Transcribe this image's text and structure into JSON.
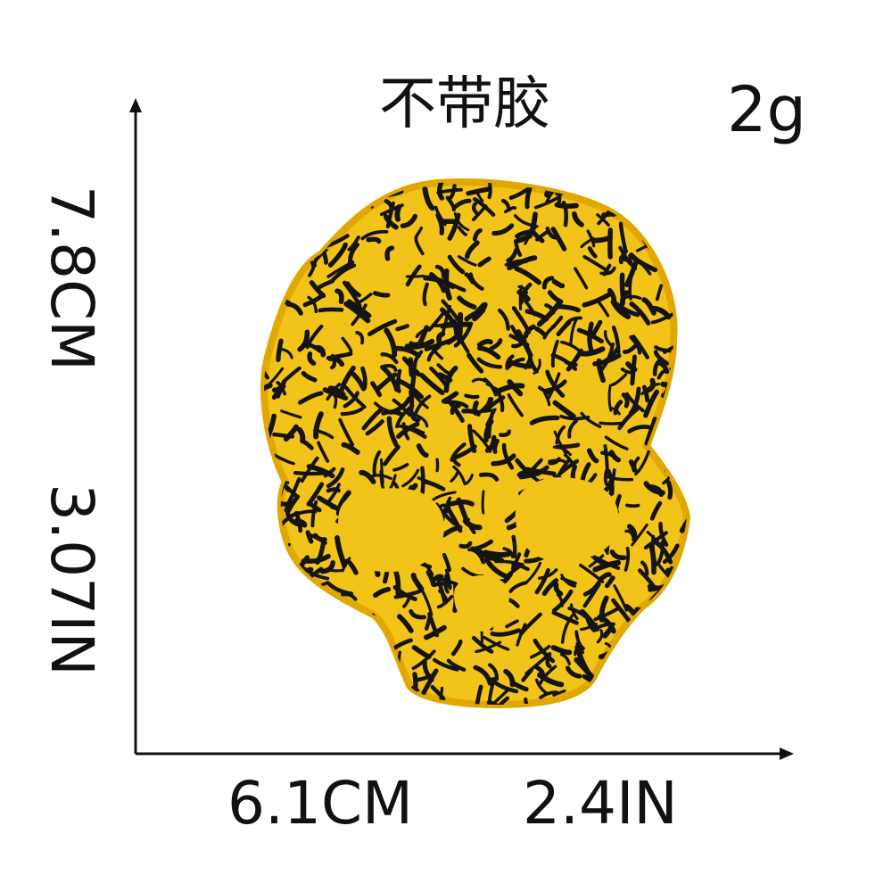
{
  "labels": {
    "note": "不带胶",
    "weight": "2g",
    "height_cm": "7.8CM",
    "height_in": "3.07IN",
    "width_cm": "6.1CM",
    "width_in": "2.4IN"
  },
  "colors": {
    "patch_fill": "#f2c318",
    "patch_border": "#e0a800",
    "embroidery": "#141414",
    "axis": "#111111"
  },
  "image": {
    "subject": "skull-embroidered-patch-icon"
  }
}
